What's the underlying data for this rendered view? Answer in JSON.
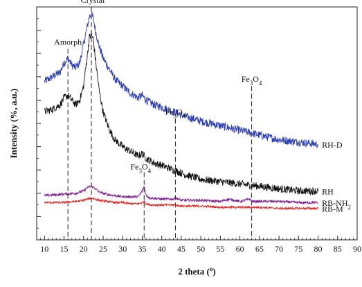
{
  "chart_data": {
    "type": "line",
    "title": "",
    "xlabel": "2 theta (",
    "xlabel_degree": "o",
    "xlabel_close": ")",
    "ylabel": "Intensity (%, a.u.)",
    "xlim": [
      8,
      90
    ],
    "x_ticks": [
      10,
      15,
      20,
      25,
      30,
      35,
      40,
      45,
      50,
      55,
      60,
      65,
      70,
      75,
      80,
      85,
      90
    ],
    "y_tick_labels_shown": false,
    "y_axis_units": "relative intensity (a.u.), arbitrary 0-100 scale",
    "ylim": [
      0,
      100
    ],
    "grid": false,
    "series": [
      {
        "name": "RH-D",
        "color": "#2e3fb5",
        "x": [
          10,
          12,
          14,
          15,
          16,
          17,
          18,
          19,
          20,
          21,
          21.5,
          22,
          22.5,
          23,
          24,
          25,
          26,
          27,
          28,
          30,
          32,
          34,
          35,
          36,
          38,
          40,
          43,
          46,
          50,
          55,
          60,
          65,
          70,
          75,
          80
        ],
        "y": [
          68,
          70,
          72,
          76,
          78,
          75,
          74,
          76,
          84,
          92,
          96,
          97,
          95,
          90,
          83,
          78,
          75,
          72,
          69,
          66,
          63,
          61,
          62,
          60,
          58,
          57,
          55,
          53,
          51,
          49,
          47,
          45,
          43,
          42,
          41
        ]
      },
      {
        "name": "RH",
        "color": "#111111",
        "x": [
          10,
          12,
          14,
          15,
          16,
          17,
          18,
          19,
          20,
          21,
          21.5,
          22,
          22.5,
          23,
          24,
          25,
          26,
          27,
          28,
          30,
          32,
          34,
          35,
          36,
          38,
          40,
          43,
          46,
          50,
          55,
          60,
          65,
          70,
          75,
          80
        ],
        "y": [
          55,
          56,
          58,
          61,
          62,
          60,
          58,
          60,
          66,
          80,
          87,
          88,
          86,
          78,
          64,
          55,
          50,
          46,
          43,
          40,
          38,
          36,
          37,
          35,
          33,
          32,
          30,
          28,
          26,
          25,
          24,
          23,
          22,
          21,
          21
        ]
      },
      {
        "name": "RB-NH",
        "name_sub": "2",
        "color": "#7a1e8c",
        "x": [
          10,
          14,
          18,
          20,
          21,
          22,
          23,
          24,
          26,
          28,
          30,
          32,
          34,
          35,
          35.5,
          36,
          37,
          40,
          43,
          43.5,
          45,
          50,
          55,
          57,
          60,
          62.5,
          63,
          65,
          70,
          75,
          80
        ],
        "y": [
          19,
          19.5,
          20,
          21,
          22.5,
          23,
          22,
          20.5,
          19.5,
          19,
          18.5,
          18.5,
          18.5,
          21,
          23,
          19,
          18,
          17.5,
          17.5,
          18,
          17,
          17,
          16.5,
          17.5,
          16.5,
          17.5,
          16.5,
          16.5,
          16.5,
          16,
          16
        ]
      },
      {
        "name": "RB-M",
        "color": "#e02020",
        "x": [
          10,
          14,
          18,
          20,
          21,
          22,
          23,
          24,
          26,
          28,
          30,
          32,
          34,
          35,
          35.5,
          36,
          37,
          40,
          43,
          45,
          50,
          55,
          60,
          63,
          65,
          70,
          75,
          80
        ],
        "y": [
          16,
          16,
          16.5,
          17,
          17.5,
          18,
          17.5,
          17,
          16.5,
          16,
          16,
          15.5,
          15.5,
          16,
          16.5,
          15.5,
          15,
          15,
          15,
          14.5,
          14.5,
          14,
          14,
          14,
          14,
          13.5,
          13.5,
          13.5
        ]
      }
    ],
    "reference_lines": [
      {
        "x": 16,
        "style": "dashed",
        "label": "Amorph",
        "y_top": 82
      },
      {
        "x": 22,
        "style": "dashed",
        "label": "Crystal",
        "y_top": 100
      },
      {
        "x": 35.5,
        "style": "dashed",
        "label": "Fe",
        "sub": "3",
        "label_end": "O",
        "sub2": "4",
        "y_top": 29
      },
      {
        "x": 43.5,
        "style": "dashed",
        "label": "Fe",
        "sub": "3",
        "label_end": "O",
        "sub2": "4",
        "y_top": 52
      },
      {
        "x": 63,
        "style": "dashed",
        "label": "Fe",
        "sub": "3",
        "label_end": "O",
        "sub2": "4",
        "y_top": 66
      }
    ]
  }
}
